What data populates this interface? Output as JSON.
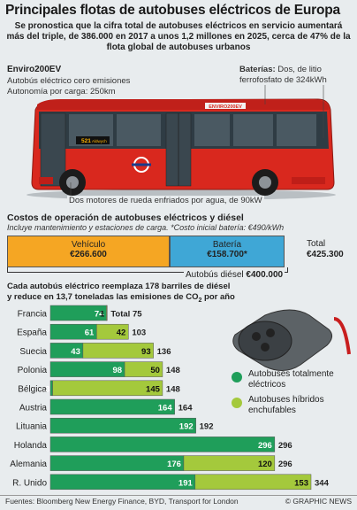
{
  "title": "Principales flotas de autobuses eléctricos de Europa",
  "subtitle": "Se pronostica que la cifra total de autobuses eléctricos en servicio aumentará más del triple, de 386.000 en 2017 a unos 1,2 millones en 2025, cerca de 47% de la flota global de autobuses urbanos",
  "bus": {
    "name": "Enviro200EV",
    "desc_line1": "Autobús eléctrico cero emisiones",
    "desc_line2": "Autonomía por carga: 250km",
    "battery_label": "Baterías:",
    "battery_text": " Dos, de litio ferrofosfato de 324kWh",
    "motor_text": "Dos motores de rueda enfriados por agua, de 90kW",
    "route_number": "521",
    "route_dest": "Aldwych",
    "brand": "ENVIRO200EV"
  },
  "cost": {
    "title": "Costos de operación de autobuses eléctricos y diésel",
    "subtitle": "Incluye mantenimiento y estaciones de carga. *Costo inicial batería: €490/kWh",
    "vehicle_label": "Vehículo",
    "vehicle_value": "€266.600",
    "battery_label": "Batería",
    "battery_value": "€158.700*",
    "total_label": "Total",
    "total_value": "€425.300",
    "diesel_label": "Autobús diésel ",
    "diesel_value": "€400.000"
  },
  "replace_text_1": "Cada autobús eléctrico reemplaza 178 barriles de diésel y reduce en 13,7 toneladas las emisiones de CO",
  "replace_sub": "2",
  "replace_text_2": " por año",
  "legend": {
    "electric": "Autobuses totalmente eléctricos",
    "hybrid": "Autobuses híbridos enchufables"
  },
  "colors": {
    "electric": "#1f9e5a",
    "hybrid": "#a4c93c",
    "vehicle": "#f5a623",
    "battery": "#3fa7d6",
    "bus_red": "#d9281e"
  },
  "chart_data": {
    "type": "bar",
    "stacked": true,
    "orientation": "horizontal",
    "categories": [
      "Francia",
      "España",
      "Suecia",
      "Polonia",
      "Bélgica",
      "Austria",
      "Lituania",
      "Holanda",
      "Alemania",
      "R. Unido"
    ],
    "series": [
      {
        "name": "Autobuses totalmente eléctricos",
        "values": [
          74,
          61,
          43,
          98,
          3,
          164,
          192,
          296,
          176,
          191
        ]
      },
      {
        "name": "Autobuses híbridos enchufables",
        "values": [
          1,
          42,
          93,
          50,
          145,
          0,
          0,
          0,
          120,
          153
        ]
      }
    ],
    "totals": [
      "Total 75",
      "103",
      "136",
      "148",
      "148",
      "164",
      "192",
      "296",
      "296",
      "344"
    ],
    "xlim": [
      0,
      344
    ]
  },
  "source": "Fuentes: Bloomberg New Energy Finance, BYD, Transport for London",
  "credit": "© GRAPHIC NEWS"
}
